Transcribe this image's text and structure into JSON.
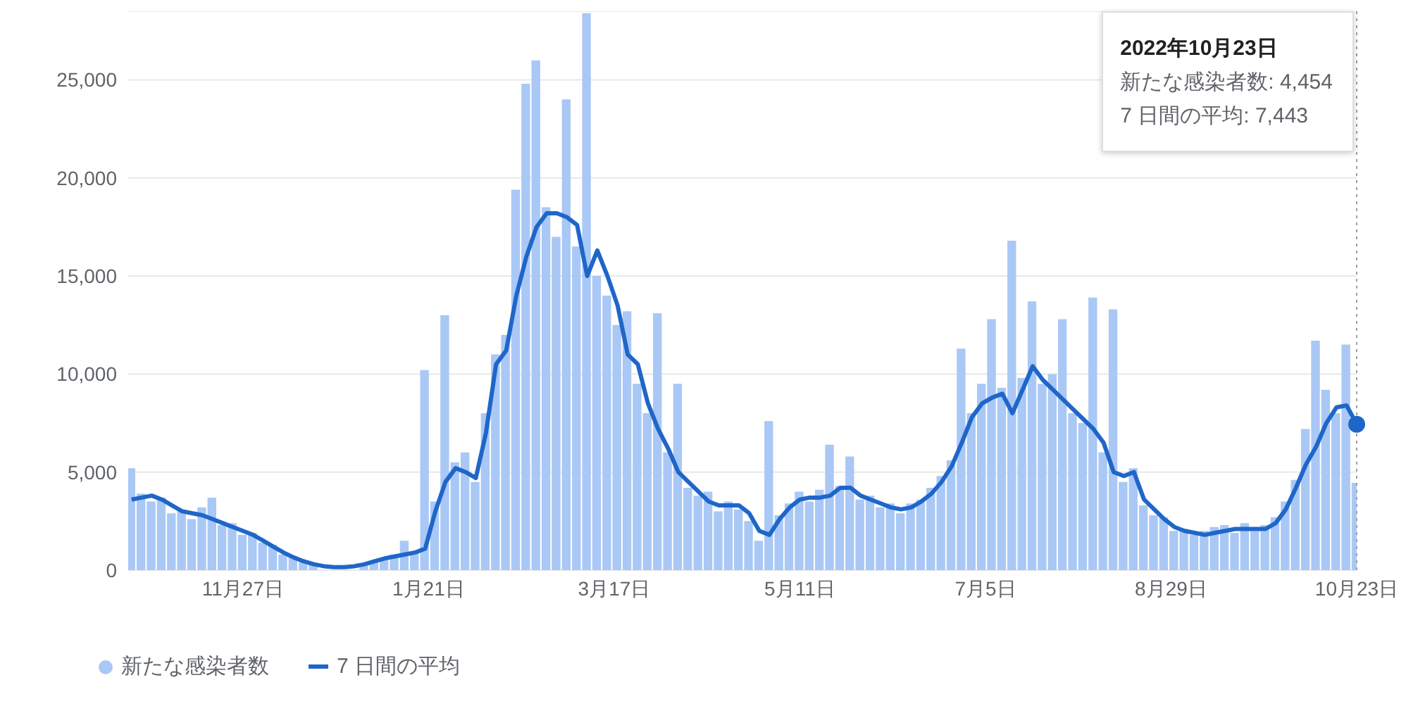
{
  "chart_data": {
    "type": "bar",
    "x": [
      "2021-10-25",
      "2021-10-28",
      "2021-10-31",
      "2021-11-03",
      "2021-11-06",
      "2021-11-09",
      "2021-11-12",
      "2021-11-15",
      "2021-11-18",
      "2021-11-21",
      "2021-11-24",
      "2021-11-27",
      "2021-11-30",
      "2021-12-03",
      "2021-12-06",
      "2021-12-09",
      "2021-12-12",
      "2021-12-15",
      "2021-12-18",
      "2021-12-21",
      "2021-12-24",
      "2021-12-27",
      "2021-12-30",
      "2022-01-02",
      "2022-01-05",
      "2022-01-08",
      "2022-01-11",
      "2022-01-14",
      "2022-01-17",
      "2022-01-20",
      "2022-01-23",
      "2022-01-26",
      "2022-01-29",
      "2022-02-01",
      "2022-02-04",
      "2022-02-07",
      "2022-02-10",
      "2022-02-13",
      "2022-02-16",
      "2022-02-19",
      "2022-02-22",
      "2022-02-25",
      "2022-02-28",
      "2022-03-03",
      "2022-03-06",
      "2022-03-09",
      "2022-03-12",
      "2022-03-15",
      "2022-03-18",
      "2022-03-21",
      "2022-03-24",
      "2022-03-27",
      "2022-03-30",
      "2022-04-02",
      "2022-04-05",
      "2022-04-08",
      "2022-04-11",
      "2022-04-14",
      "2022-04-17",
      "2022-04-20",
      "2022-04-23",
      "2022-04-26",
      "2022-04-29",
      "2022-05-02",
      "2022-05-05",
      "2022-05-08",
      "2022-05-11",
      "2022-05-14",
      "2022-05-17",
      "2022-05-20",
      "2022-05-23",
      "2022-05-26",
      "2022-05-29",
      "2022-06-01",
      "2022-06-04",
      "2022-06-07",
      "2022-06-10",
      "2022-06-13",
      "2022-06-16",
      "2022-06-19",
      "2022-06-22",
      "2022-06-25",
      "2022-06-28",
      "2022-07-01",
      "2022-07-04",
      "2022-07-07",
      "2022-07-10",
      "2022-07-13",
      "2022-07-16",
      "2022-07-19",
      "2022-07-22",
      "2022-07-25",
      "2022-07-28",
      "2022-07-31",
      "2022-08-03",
      "2022-08-06",
      "2022-08-09",
      "2022-08-12",
      "2022-08-15",
      "2022-08-18",
      "2022-08-21",
      "2022-08-24",
      "2022-08-27",
      "2022-08-30",
      "2022-09-02",
      "2022-09-05",
      "2022-09-08",
      "2022-09-11",
      "2022-09-14",
      "2022-09-17",
      "2022-09-20",
      "2022-09-23",
      "2022-09-26",
      "2022-09-29",
      "2022-10-02",
      "2022-10-05",
      "2022-10-08",
      "2022-10-11",
      "2022-10-14",
      "2022-10-17",
      "2022-10-20",
      "2022-10-23"
    ],
    "series": [
      {
        "name": "新たな感染者数",
        "color": "#a9c8f5",
        "values": [
          5200,
          3900,
          3500,
          3700,
          2900,
          3100,
          2600,
          3200,
          3700,
          2300,
          2400,
          1800,
          1900,
          1400,
          1300,
          800,
          700,
          400,
          300,
          null,
          null,
          null,
          null,
          300,
          500,
          600,
          800,
          1500,
          900,
          10200,
          3500,
          13000,
          5500,
          6000,
          4500,
          8000,
          11000,
          12000,
          19400,
          24800,
          26000,
          18500,
          17000,
          24000,
          16500,
          28400,
          15000,
          14000,
          12500,
          13200,
          9500,
          8000,
          13100,
          6000,
          9500,
          4200,
          3800,
          4000,
          3000,
          3500,
          3100,
          2500,
          1500,
          7600,
          2800,
          3400,
          4000,
          3500,
          4100,
          6400,
          4300,
          5800,
          3600,
          3800,
          3200,
          3400,
          2900,
          3400,
          3600,
          4200,
          4800,
          5600,
          11300,
          8000,
          9500,
          12800,
          9300,
          16800,
          9800,
          13700,
          9500,
          10000,
          12800,
          8000,
          7500,
          13900,
          6000,
          13300,
          4500,
          5200,
          3300,
          2800,
          2700,
          2000,
          2100,
          1800,
          2000,
          2200,
          2300,
          1900,
          2400,
          2000,
          2300,
          2700,
          3500,
          4600,
          7200,
          11700,
          9200,
          8000,
          11500,
          4454
        ]
      },
      {
        "name": "7 日間の平均",
        "type": "line",
        "color": "#1f66c9",
        "values": [
          3600,
          3700,
          3800,
          3600,
          3300,
          3000,
          2900,
          2800,
          2600,
          2400,
          2200,
          2000,
          1800,
          1500,
          1200,
          900,
          650,
          450,
          300,
          200,
          150,
          150,
          200,
          300,
          450,
          600,
          700,
          800,
          900,
          1100,
          3000,
          4500,
          5200,
          5000,
          4700,
          7000,
          10500,
          11200,
          14000,
          16000,
          17500,
          18200,
          18200,
          18000,
          17600,
          15000,
          16300,
          15000,
          13500,
          11000,
          10500,
          8500,
          7200,
          6200,
          5000,
          4500,
          4000,
          3500,
          3300,
          3300,
          3300,
          2900,
          2000,
          1800,
          2600,
          3200,
          3600,
          3700,
          3700,
          3800,
          4200,
          4200,
          3800,
          3600,
          3400,
          3200,
          3100,
          3200,
          3500,
          3900,
          4500,
          5300,
          6500,
          7800,
          8500,
          8800,
          9000,
          8000,
          9200,
          10400,
          9700,
          9200,
          8700,
          8200,
          7700,
          7200,
          6500,
          5000,
          4800,
          5000,
          3600,
          3100,
          2600,
          2200,
          2000,
          1900,
          1800,
          1900,
          2000,
          2100,
          2100,
          2100,
          2100,
          2400,
          3100,
          4200,
          5400,
          6300,
          7500,
          8300,
          8400,
          7443
        ]
      }
    ],
    "xlim": [
      "2021-10-24",
      "2022-10-23"
    ],
    "xticks": [
      {
        "value": "2021-11-27",
        "label": "11月27日"
      },
      {
        "value": "2022-01-21",
        "label": "1月21日"
      },
      {
        "value": "2022-03-17",
        "label": "3月17日"
      },
      {
        "value": "2022-05-11",
        "label": "5月11日"
      },
      {
        "value": "2022-07-05",
        "label": "7月5日"
      },
      {
        "value": "2022-08-29",
        "label": "8月29日"
      },
      {
        "value": "2022-10-23",
        "label": "10月23日"
      }
    ],
    "ylim": [
      0,
      28500
    ],
    "yticks": [
      0,
      {
        "value": 5000,
        "label": "5,000"
      },
      {
        "value": 10000,
        "label": "10,000"
      },
      {
        "value": 15000,
        "label": "15,000"
      },
      {
        "value": 20000,
        "label": "20,000"
      },
      {
        "value": 25000,
        "label": "25,000"
      }
    ],
    "grid": "y",
    "legend": "bottom left",
    "ref_lines": [
      {
        "axis": "x",
        "value": "2022-10-23",
        "label": null,
        "color": "#9aa0a6",
        "line_style": "dotted"
      }
    ],
    "annotations": [
      "2022年10月23日",
      "新たな感染者数: 4,454",
      "7 日間の平均: 7,443"
    ]
  }
}
